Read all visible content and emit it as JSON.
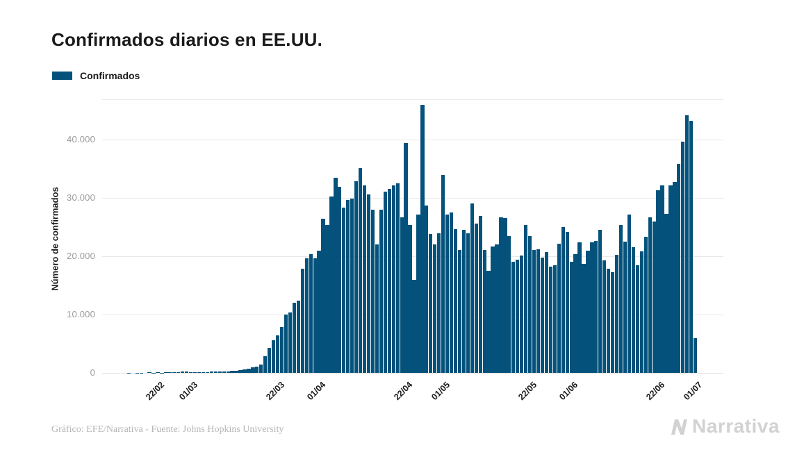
{
  "title": "Confirmados diarios en EE.UU.",
  "legend": {
    "label": "Confirmados",
    "color": "#04527b"
  },
  "footer": {
    "credit": "Gráfico: EFE/Narrativa - Fuente: Johns Hopkins University"
  },
  "brand": {
    "name": "Narrativa"
  },
  "chart_data": {
    "type": "bar",
    "title": "Confirmados diarios en EE.UU.",
    "series_name": "Confirmados",
    "bar_color": "#04527b",
    "xlabel": "",
    "ylabel": "Número de confirmados",
    "ylim": [
      0,
      47000
    ],
    "grid": true,
    "legend_position": "top-left",
    "y_ticks": [
      {
        "value": 0,
        "label": "0"
      },
      {
        "value": 10000,
        "label": "10.000"
      },
      {
        "value": 20000,
        "label": "20.000"
      },
      {
        "value": 30000,
        "label": "30.000"
      },
      {
        "value": 40000,
        "label": "40.000"
      }
    ],
    "x_ticks": [
      "22/02",
      "01/03",
      "22/03",
      "01/04",
      "22/04",
      "01/05",
      "22/05",
      "01/06",
      "22/06",
      "01/07"
    ],
    "dates": [
      "09/02",
      "10/02",
      "11/02",
      "12/02",
      "13/02",
      "14/02",
      "15/02",
      "16/02",
      "17/02",
      "18/02",
      "19/02",
      "20/02",
      "21/02",
      "22/02",
      "23/02",
      "24/02",
      "25/02",
      "26/02",
      "27/02",
      "28/02",
      "29/02",
      "01/03",
      "02/03",
      "03/03",
      "04/03",
      "05/03",
      "06/03",
      "07/03",
      "08/03",
      "09/03",
      "10/03",
      "11/03",
      "12/03",
      "13/03",
      "14/03",
      "15/03",
      "16/03",
      "17/03",
      "18/03",
      "19/03",
      "20/03",
      "21/03",
      "22/03",
      "23/03",
      "24/03",
      "25/03",
      "26/03",
      "27/03",
      "28/03",
      "29/03",
      "30/03",
      "31/03",
      "01/04",
      "02/04",
      "03/04",
      "04/04",
      "05/04",
      "06/04",
      "07/04",
      "08/04",
      "09/04",
      "10/04",
      "11/04",
      "12/04",
      "13/04",
      "14/04",
      "15/04",
      "16/04",
      "17/04",
      "18/04",
      "19/04",
      "20/04",
      "21/04",
      "22/04",
      "23/04",
      "24/04",
      "25/04",
      "26/04",
      "27/04",
      "28/04",
      "29/04",
      "30/04",
      "01/05",
      "02/05",
      "03/05",
      "04/05",
      "05/05",
      "06/05",
      "07/05",
      "08/05",
      "09/05",
      "10/05",
      "11/05",
      "12/05",
      "13/05",
      "14/05",
      "15/05",
      "16/05",
      "17/05",
      "18/05",
      "19/05",
      "20/05",
      "21/05",
      "22/05",
      "23/05",
      "24/05",
      "25/05",
      "26/05",
      "27/05",
      "28/05",
      "29/05",
      "30/05",
      "31/05",
      "01/06",
      "02/06",
      "03/06",
      "04/06",
      "05/06",
      "06/06",
      "07/06",
      "08/06",
      "09/06",
      "10/06",
      "11/06",
      "12/06",
      "13/06",
      "14/06",
      "15/06",
      "16/06",
      "17/06",
      "18/06",
      "19/06",
      "20/06",
      "21/06",
      "22/06",
      "23/06",
      "24/06",
      "25/06",
      "26/06",
      "27/06",
      "28/06",
      "29/06",
      "30/06",
      "01/07"
    ],
    "values": [
      0,
      0,
      0,
      0,
      0,
      0,
      50,
      0,
      50,
      50,
      0,
      100,
      50,
      100,
      50,
      100,
      100,
      150,
      150,
      200,
      250,
      100,
      120,
      140,
      160,
      180,
      200,
      220,
      240,
      260,
      280,
      320,
      400,
      480,
      600,
      720,
      920,
      1080,
      1470,
      2800,
      4300,
      5600,
      6400,
      7800,
      10000,
      10400,
      12000,
      12400,
      17900,
      19600,
      20400,
      19600,
      20900,
      26400,
      25400,
      30200,
      33500,
      31900,
      28300,
      29600,
      29900,
      32800,
      35100,
      32200,
      30600,
      28000,
      22000,
      28000,
      31100,
      31500,
      32100,
      32500,
      26700,
      39400,
      25300,
      16000,
      27100,
      46000,
      28700,
      23800,
      22000,
      23900,
      33900,
      27200,
      27500,
      24700,
      21100,
      24500,
      23900,
      29000,
      25600,
      26900,
      21100,
      17500,
      21700,
      22000,
      26700,
      26500,
      23500,
      19100,
      19400,
      20100,
      25300,
      23500,
      21100,
      21200,
      19800,
      20700,
      18200,
      18500,
      22100,
      25000,
      24200,
      19100,
      20300,
      22400,
      18700,
      21000,
      22400,
      22600,
      24500,
      19300,
      17800,
      17300,
      20200,
      25400,
      22500,
      27200,
      21500,
      18500,
      20800,
      23300,
      26700,
      25900,
      31300,
      32100,
      27300,
      32200,
      32700,
      35800,
      39600,
      44200,
      43200,
      5900
    ]
  }
}
